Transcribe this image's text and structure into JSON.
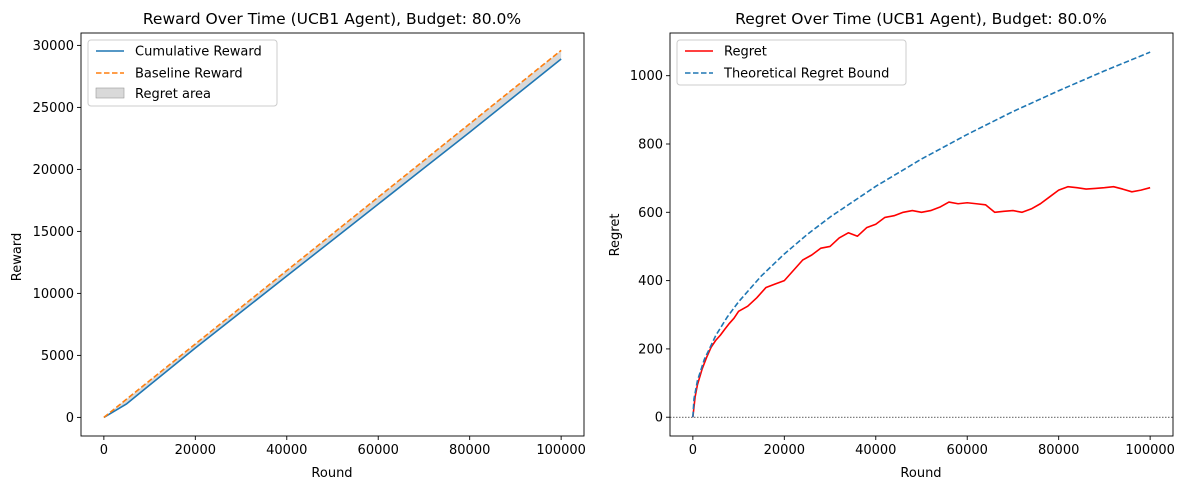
{
  "chart_data": [
    {
      "type": "line",
      "title": "Reward Over Time (UCB1 Agent), Budget: 80.0%",
      "xlabel": "Round",
      "ylabel": "Reward",
      "xlim": [
        -5000,
        105000
      ],
      "ylim": [
        -1500,
        31000
      ],
      "xticks": [
        0,
        20000,
        40000,
        60000,
        80000,
        100000
      ],
      "xtick_labels": [
        "0",
        "20000",
        "40000",
        "60000",
        "80000",
        "100000"
      ],
      "yticks": [
        0,
        5000,
        10000,
        15000,
        20000,
        25000,
        30000
      ],
      "ytick_labels": [
        "0",
        "5000",
        "10000",
        "15000",
        "20000",
        "25000",
        "30000"
      ],
      "grid": false,
      "legend_position": "upper-left",
      "series": [
        {
          "name": "Cumulative Reward",
          "color": "#1f77b4",
          "style": "solid",
          "x": [
            0,
            5000,
            10000,
            20000,
            30000,
            40000,
            50000,
            60000,
            70000,
            80000,
            90000,
            100000
          ],
          "values": [
            0,
            1100,
            2600,
            5600,
            8500,
            11400,
            14300,
            17200,
            20100,
            23000,
            25950,
            28900
          ]
        },
        {
          "name": "Baseline Reward",
          "color": "#ff7f0e",
          "style": "dashed",
          "x": [
            0,
            100000
          ],
          "values": [
            0,
            29600
          ]
        }
      ],
      "fill_between": {
        "name": "Regret area",
        "color": "#bfbfbf",
        "between": [
          "Cumulative Reward",
          "Baseline Reward"
        ]
      }
    },
    {
      "type": "line",
      "title": "Regret Over Time (UCB1 Agent), Budget: 80.0%",
      "xlabel": "Round",
      "ylabel": "Regret",
      "xlim": [
        -5000,
        105000
      ],
      "ylim": [
        -55,
        1125
      ],
      "xticks": [
        0,
        20000,
        40000,
        60000,
        80000,
        100000
      ],
      "xtick_labels": [
        "0",
        "20000",
        "40000",
        "60000",
        "80000",
        "100000"
      ],
      "yticks": [
        0,
        200,
        400,
        600,
        800,
        1000
      ],
      "ytick_labels": [
        "0",
        "200",
        "400",
        "600",
        "800",
        "1000"
      ],
      "grid": false,
      "legend_position": "upper-left",
      "hline": {
        "y": 0,
        "color": "#000000",
        "style": "dotted"
      },
      "series": [
        {
          "name": "Regret",
          "color": "#ff0000",
          "style": "solid",
          "x": [
            0,
            500,
            1000,
            2000,
            3000,
            4000,
            5000,
            6000,
            7000,
            8000,
            9000,
            10000,
            12000,
            14000,
            16000,
            18000,
            20000,
            22000,
            24000,
            26000,
            28000,
            30000,
            32000,
            34000,
            36000,
            38000,
            40000,
            42000,
            44000,
            46000,
            48000,
            50000,
            52000,
            54000,
            56000,
            58000,
            60000,
            62000,
            64000,
            66000,
            68000,
            70000,
            72000,
            74000,
            76000,
            78000,
            80000,
            82000,
            84000,
            86000,
            88000,
            90000,
            92000,
            94000,
            96000,
            98000,
            100000
          ],
          "values": [
            0,
            60,
            95,
            140,
            175,
            205,
            225,
            240,
            258,
            275,
            290,
            310,
            325,
            350,
            380,
            390,
            400,
            430,
            460,
            475,
            495,
            500,
            525,
            540,
            530,
            555,
            565,
            585,
            590,
            600,
            605,
            600,
            605,
            615,
            630,
            625,
            628,
            625,
            622,
            600,
            603,
            605,
            600,
            610,
            625,
            645,
            665,
            675,
            672,
            668,
            670,
            672,
            675,
            668,
            660,
            665,
            672
          ]
        },
        {
          "name": "Theoretical Regret Bound",
          "color": "#1f77b4",
          "style": "dashed",
          "x": [
            0,
            250,
            1000,
            2500,
            5000,
            7500,
            10000,
            15000,
            20000,
            25000,
            30000,
            40000,
            50000,
            60000,
            70000,
            80000,
            90000,
            100000
          ],
          "values": [
            0,
            54,
            107,
            169,
            239,
            293,
            338,
            414,
            478,
            535,
            586,
            676,
            756,
            828,
            895,
            956,
            1014,
            1069
          ]
        }
      ]
    }
  ]
}
